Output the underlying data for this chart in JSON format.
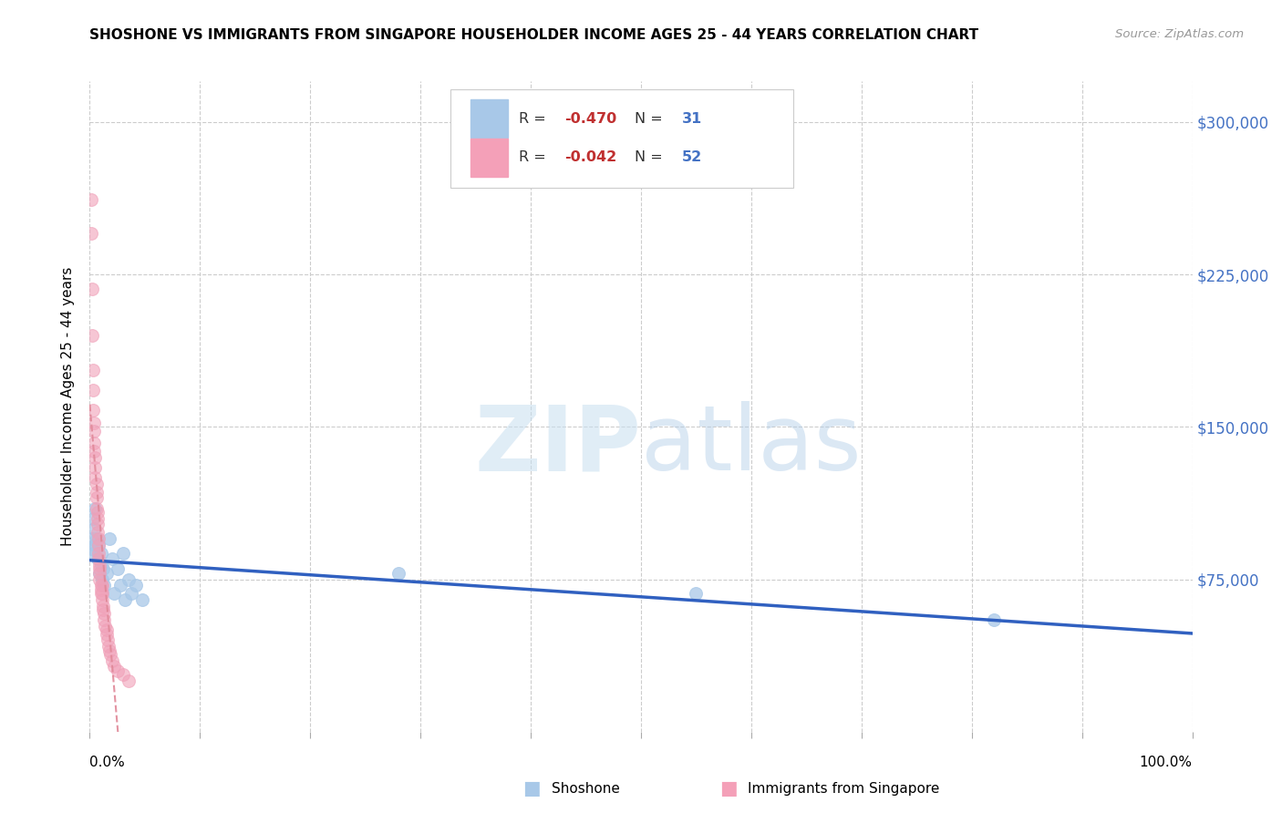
{
  "title": "SHOSHONE VS IMMIGRANTS FROM SINGAPORE HOUSEHOLDER INCOME AGES 25 - 44 YEARS CORRELATION CHART",
  "source": "Source: ZipAtlas.com",
  "ylabel": "Householder Income Ages 25 - 44 years",
  "ytick_vals": [
    0,
    75000,
    150000,
    225000,
    300000
  ],
  "ytick_labels": [
    "",
    "$75,000",
    "$150,000",
    "$225,000",
    "$300,000"
  ],
  "shoshone_color": "#a8c8e8",
  "singapore_color": "#f0a0b8",
  "shoshone_line_color": "#3060c0",
  "singapore_line_color": "#e08898",
  "background_color": "#ffffff",
  "watermark_zip": "ZIP",
  "watermark_atlas": "atlas",
  "xlim": [
    0,
    1.0
  ],
  "ylim": [
    0,
    320000
  ],
  "shoshone_R": "-0.470",
  "shoshone_N": "31",
  "singapore_R": "-0.042",
  "singapore_N": "52",
  "shoshone_x": [
    0.001,
    0.002,
    0.003,
    0.003,
    0.004,
    0.005,
    0.005,
    0.006,
    0.007,
    0.008,
    0.009,
    0.01,
    0.01,
    0.011,
    0.012,
    0.013,
    0.015,
    0.018,
    0.02,
    0.022,
    0.025,
    0.028,
    0.03,
    0.032,
    0.035,
    0.038,
    0.042,
    0.048,
    0.28,
    0.55,
    0.82
  ],
  "shoshone_y": [
    90000,
    95000,
    105000,
    88000,
    100000,
    92000,
    110000,
    95000,
    85000,
    92000,
    78000,
    88000,
    82000,
    75000,
    80000,
    72000,
    78000,
    95000,
    85000,
    68000,
    80000,
    72000,
    88000,
    65000,
    75000,
    68000,
    72000,
    65000,
    78000,
    68000,
    55000
  ],
  "singapore_x": [
    0.001,
    0.001,
    0.002,
    0.002,
    0.003,
    0.003,
    0.003,
    0.004,
    0.004,
    0.004,
    0.004,
    0.005,
    0.005,
    0.005,
    0.006,
    0.006,
    0.006,
    0.006,
    0.007,
    0.007,
    0.007,
    0.007,
    0.008,
    0.008,
    0.008,
    0.008,
    0.009,
    0.009,
    0.009,
    0.009,
    0.01,
    0.01,
    0.01,
    0.011,
    0.011,
    0.011,
    0.012,
    0.012,
    0.013,
    0.013,
    0.014,
    0.015,
    0.015,
    0.016,
    0.017,
    0.018,
    0.019,
    0.02,
    0.022,
    0.025,
    0.03,
    0.035
  ],
  "singapore_y": [
    262000,
    245000,
    218000,
    195000,
    178000,
    168000,
    158000,
    152000,
    148000,
    142000,
    138000,
    135000,
    130000,
    125000,
    122000,
    118000,
    115000,
    110000,
    108000,
    105000,
    102000,
    98000,
    95000,
    92000,
    88000,
    85000,
    82000,
    80000,
    78000,
    75000,
    72000,
    70000,
    68000,
    72000,
    68000,
    65000,
    62000,
    60000,
    58000,
    55000,
    52000,
    50000,
    48000,
    45000,
    42000,
    40000,
    38000,
    35000,
    32000,
    30000,
    28000,
    25000
  ]
}
